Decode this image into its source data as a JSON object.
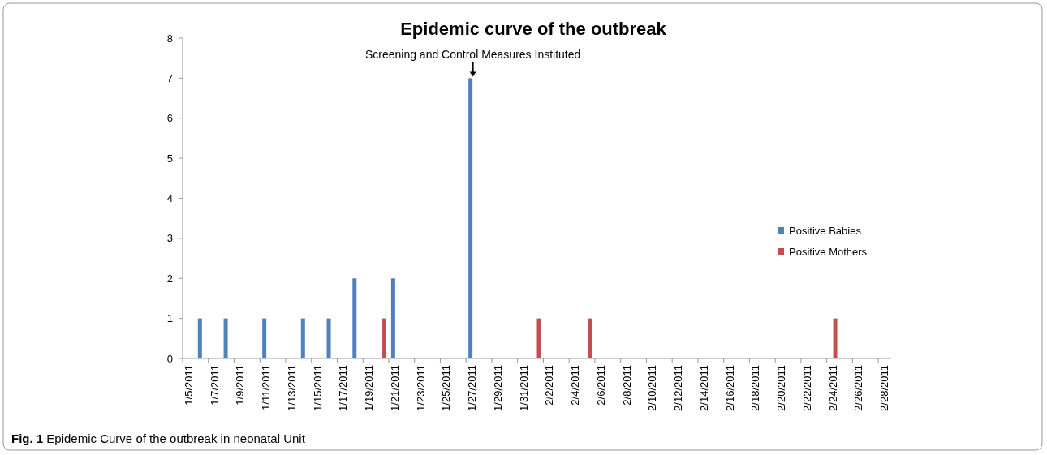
{
  "chart_data": {
    "type": "bar",
    "title": "Epidemic curve of the outbreak",
    "categories": [
      "1/5/2011",
      null,
      "1/7/2011",
      null,
      "1/9/2011",
      null,
      "1/11/2011",
      null,
      "1/13/2011",
      null,
      "1/15/2011",
      null,
      "1/17/2011",
      null,
      "1/19/2011",
      null,
      "1/21/2011",
      null,
      "1/23/2011",
      null,
      "1/25/2011",
      null,
      "1/27/2011",
      null,
      "1/29/2011",
      null,
      "1/31/2011",
      null,
      "2/2/2011",
      null,
      "2/4/2011",
      null,
      "2/6/2011",
      null,
      "2/8/2011",
      null,
      "2/10/2011",
      null,
      "2/12/2011",
      null,
      "2/14/2011",
      null,
      "2/16/2011",
      null,
      "2/18/2011",
      null,
      "2/20/2011",
      null,
      "2/22/2011",
      null,
      "2/24/2011",
      null,
      "2/26/2011",
      null,
      "2/28/2011"
    ],
    "series": [
      {
        "name": "Positive Babies",
        "color": "#4f81bd",
        "values": [
          0,
          1,
          0,
          1,
          0,
          0,
          1,
          0,
          0,
          1,
          0,
          1,
          0,
          2,
          0,
          0,
          2,
          0,
          0,
          0,
          0,
          0,
          7,
          0,
          0,
          0,
          0,
          0,
          0,
          0,
          0,
          0,
          0,
          0,
          0,
          0,
          0,
          0,
          0,
          0,
          0,
          0,
          0,
          0,
          0,
          0,
          0,
          0,
          0,
          0,
          0,
          0,
          0,
          0,
          0
        ]
      },
      {
        "name": "Positive Mothers",
        "color": "#c0504d",
        "values": [
          0,
          0,
          0,
          0,
          0,
          0,
          0,
          0,
          0,
          0,
          0,
          0,
          0,
          0,
          0,
          1,
          0,
          0,
          0,
          0,
          0,
          0,
          0,
          0,
          0,
          0,
          0,
          1,
          0,
          0,
          0,
          1,
          0,
          0,
          0,
          0,
          0,
          0,
          0,
          0,
          0,
          0,
          0,
          0,
          0,
          0,
          0,
          0,
          0,
          0,
          1,
          0,
          0,
          0,
          0
        ]
      }
    ],
    "ylim": [
      0,
      8
    ],
    "yticks": [
      0,
      1,
      2,
      3,
      4,
      5,
      6,
      7,
      8
    ],
    "grid": false,
    "legend": "right",
    "annotations": [
      {
        "text": "Screening and Control  Measures Instituted",
        "x": "1/27/2011",
        "y": 7
      },
      "Fig. 1 Epidemic Curve of the outbreak in neonatal Unit"
    ]
  }
}
